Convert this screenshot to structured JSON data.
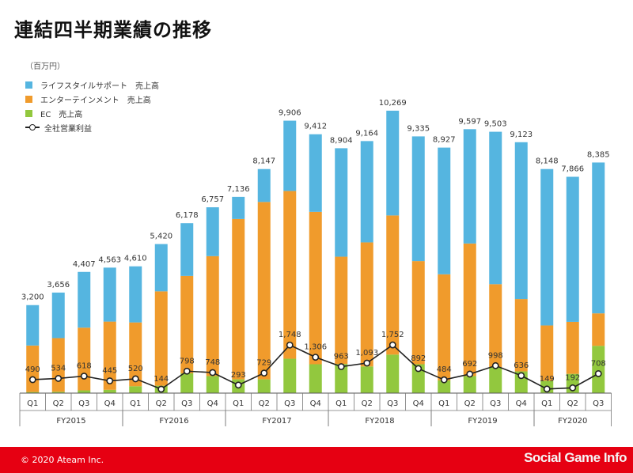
{
  "title": "連結四半期業績の推移",
  "unit_label": "（百万円）",
  "footer": {
    "copyright": "© 2020 Ateam Inc.",
    "watermark": "Social Game Info"
  },
  "colors": {
    "lifestyle": "#55b5e0",
    "entertainment": "#f09b2c",
    "ec": "#92c83e",
    "footer": "#e60012",
    "line": "#222222"
  },
  "legend": [
    {
      "label": "ライフスタイルサポート　売上高",
      "color_key": "lifestyle",
      "kind": "bar"
    },
    {
      "label": "エンターテインメント　売上高",
      "color_key": "entertainment",
      "kind": "bar"
    },
    {
      "label": "EC　売上高",
      "color_key": "ec",
      "kind": "bar"
    },
    {
      "label": "全社営業利益",
      "color_key": "line",
      "kind": "line"
    }
  ],
  "chart_data": {
    "type": "bar",
    "stacked": true,
    "categories": [
      "Q1",
      "Q2",
      "Q3",
      "Q4",
      "Q1",
      "Q2",
      "Q3",
      "Q4",
      "Q1",
      "Q2",
      "Q3",
      "Q4",
      "Q1",
      "Q2",
      "Q3",
      "Q4",
      "Q1",
      "Q2",
      "Q3",
      "Q4",
      "Q1",
      "Q2",
      "Q3"
    ],
    "groups": [
      {
        "label": "FY2015",
        "count": 4
      },
      {
        "label": "FY2016",
        "count": 4
      },
      {
        "label": "FY2017",
        "count": 4
      },
      {
        "label": "FY2018",
        "count": 4
      },
      {
        "label": "FY2019",
        "count": 4
      },
      {
        "label": "FY2020",
        "count": 3
      }
    ],
    "totals": [
      3200,
      3656,
      4407,
      4563,
      4610,
      5420,
      6178,
      6757,
      7136,
      8147,
      9906,
      9412,
      8904,
      9164,
      10269,
      9335,
      8927,
      9597,
      9503,
      9123,
      8148,
      7866,
      8385
    ],
    "total_labels": [
      "3,200",
      "3,656",
      "4,407",
      "4,563",
      "4,610",
      "5,420",
      "6,178",
      "6,757",
      "7,136",
      "8,147",
      "9,906",
      "9,412",
      "8,904",
      "9,164",
      "10,269",
      "9,335",
      "8,927",
      "9,597",
      "9,503",
      "9,123",
      "8,148",
      "7,866",
      "8,385"
    ],
    "series": [
      {
        "name": "EC　売上高",
        "color_key": "ec",
        "values": [
          40,
          50,
          100,
          120,
          250,
          270,
          720,
          620,
          500,
          500,
          1250,
          1050,
          1060,
          970,
          1400,
          1050,
          460,
          620,
          940,
          790,
          450,
          700,
          1720
        ]
      },
      {
        "name": "エンターテインメント　売上高",
        "color_key": "entertainment",
        "values": [
          1690,
          1950,
          2280,
          2480,
          2320,
          3430,
          3540,
          4360,
          5830,
          6450,
          6100,
          5540,
          3900,
          4510,
          5060,
          3750,
          3860,
          4820,
          3020,
          2630,
          2010,
          1890,
          1180
        ]
      },
      {
        "name": "ライフスタイルサポート　売上高",
        "color_key": "lifestyle",
        "values": [
          1470,
          1656,
          2027,
          1963,
          2040,
          1720,
          1918,
          1777,
          806,
          1197,
          2556,
          2822,
          3944,
          3684,
          3809,
          4535,
          4607,
          4157,
          5543,
          5703,
          5688,
          5276,
          5485
        ]
      }
    ],
    "line": {
      "name": "全社営業利益",
      "values": [
        490,
        534,
        618,
        445,
        520,
        144,
        798,
        748,
        293,
        729,
        1748,
        1306,
        963,
        1093,
        1752,
        892,
        484,
        692,
        998,
        636,
        149,
        192,
        708
      ],
      "labels": [
        "490",
        "534",
        "618",
        "445",
        "520",
        "144",
        "798",
        "748",
        "293",
        "729",
        "1,748",
        "1,306",
        "963",
        "1,093",
        "1,752",
        "892",
        "484",
        "692",
        "998",
        "636",
        "149",
        "192",
        "708"
      ]
    },
    "ylim": [
      0,
      10900
    ]
  }
}
